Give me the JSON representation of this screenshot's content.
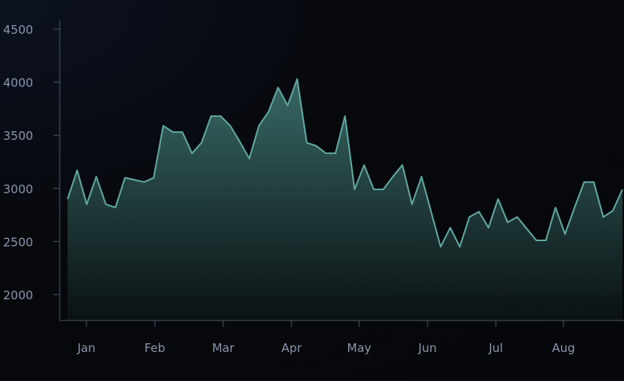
{
  "chart_data": {
    "type": "area",
    "title": "",
    "xlabel": "",
    "ylabel": "",
    "x_tick_labels": [
      "Jan",
      "Feb",
      "Mar",
      "Apr",
      "May",
      "Jun",
      "Jul",
      "Aug"
    ],
    "y_ticks": [
      2000,
      2500,
      3000,
      3500,
      4000,
      4500
    ],
    "y_tick_labels": [
      "2000",
      "2500",
      "3000",
      "3500",
      "4000",
      "4500"
    ],
    "ylim": [
      1750,
      4600
    ],
    "grid": false,
    "legend": "none",
    "colors": {
      "line": "#5fa8a0",
      "fill_top": "#3a6e6a",
      "fill_bottom": "#0b1214",
      "axis": "#4a5568",
      "tick_label": "#8a96ad"
    },
    "series": [
      {
        "values": [
          2900,
          3170,
          2850,
          3110,
          2850,
          2820,
          3100,
          3080,
          3060,
          3100,
          3590,
          3530,
          3530,
          3330,
          3430,
          3680,
          3680,
          3590,
          3440,
          3280,
          3590,
          3720,
          3950,
          3780,
          4030,
          3430,
          3400,
          3330,
          3330,
          3680,
          2990,
          3220,
          2990,
          2990,
          3110,
          3220,
          2850,
          3110,
          2780,
          2450,
          2630,
          2450,
          2730,
          2780,
          2630,
          2900,
          2680,
          2730,
          2620,
          2510,
          2510,
          2820,
          2570,
          2820,
          3060,
          3060,
          2730,
          2790,
          2990
        ]
      }
    ]
  }
}
